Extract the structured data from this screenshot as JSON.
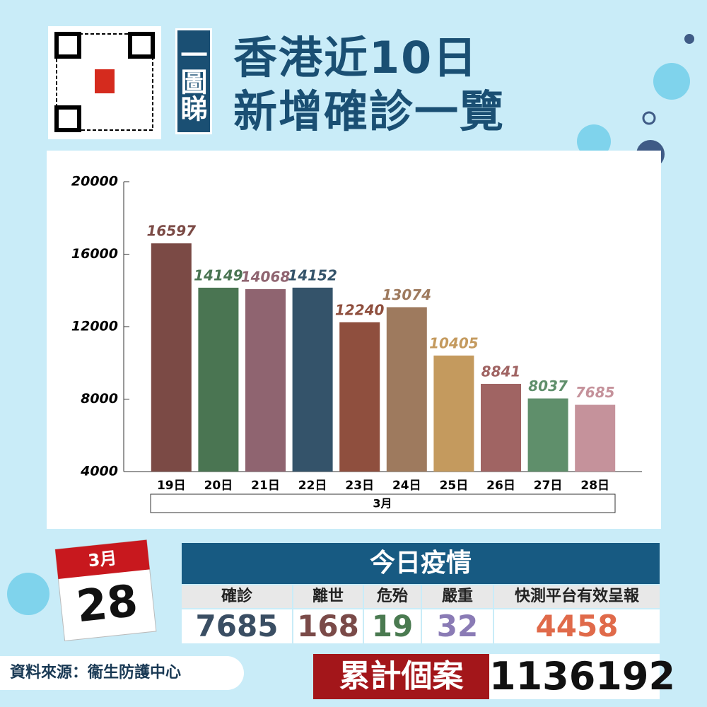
{
  "header": {
    "badge": "一圖睇",
    "title_lines": [
      "香港近10日",
      "新增確診一覽"
    ]
  },
  "chart_data": {
    "type": "bar",
    "categories": [
      "19日",
      "20日",
      "21日",
      "22日",
      "23日",
      "24日",
      "25日",
      "26日",
      "27日",
      "28日"
    ],
    "group_label": "3月",
    "values": [
      16597,
      14149,
      14068,
      14152,
      12240,
      13074,
      10405,
      8841,
      8037,
      7685
    ],
    "colors": [
      "#7b4a45",
      "#4a7552",
      "#8f6470",
      "#34536a",
      "#8f4f3e",
      "#9e7a5e",
      "#c49a5e",
      "#a06463",
      "#5f8f6b",
      "#c5929b"
    ],
    "ylim": [
      4000,
      20000
    ],
    "yticks": [
      4000,
      8000,
      12000,
      16000,
      20000
    ]
  },
  "date": {
    "month": "3月",
    "day": "28"
  },
  "today": {
    "title": "今日疫情",
    "columns": [
      {
        "label": "確診",
        "value": 7685
      },
      {
        "label": "離世",
        "value": 168
      },
      {
        "label": "危殆",
        "value": 19
      },
      {
        "label": "嚴重",
        "value": 32
      },
      {
        "label": "快測平台有效呈報",
        "value": 4458
      }
    ]
  },
  "source": "資料來源：衞生防護中心",
  "cumulative": {
    "label": "累計個案",
    "value": 1136192
  }
}
